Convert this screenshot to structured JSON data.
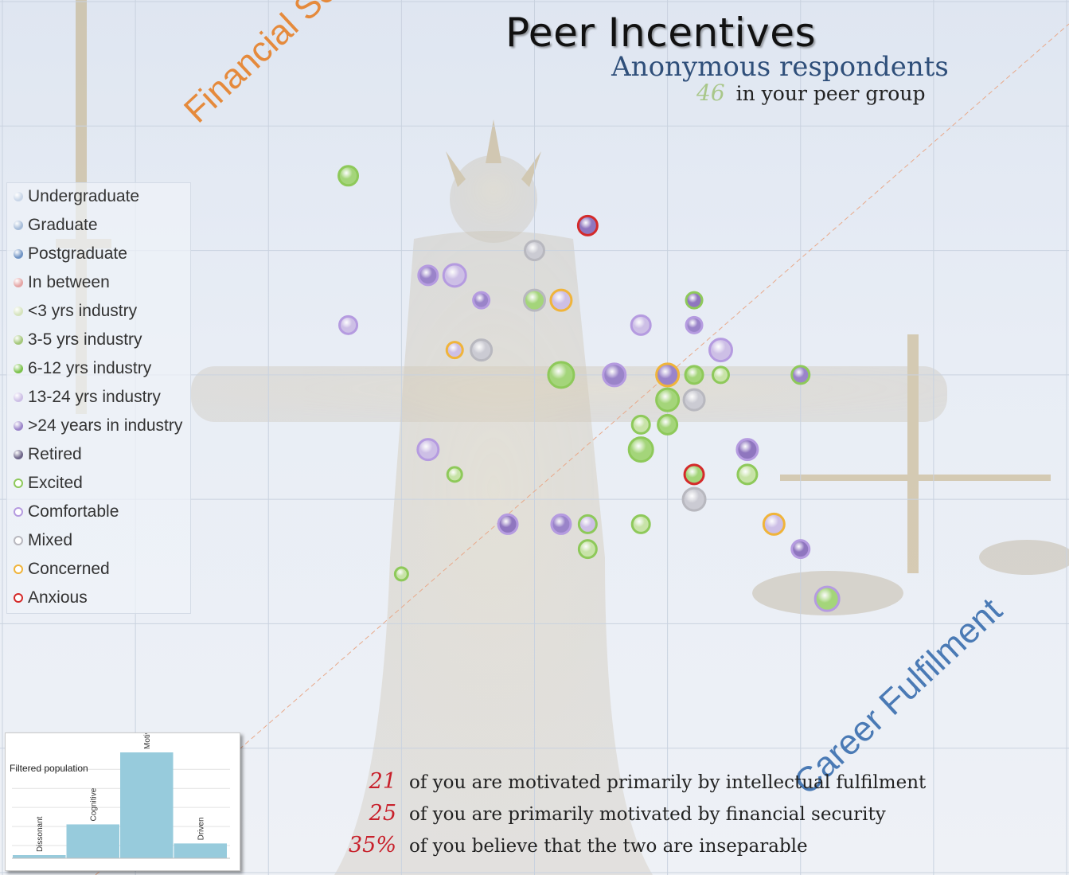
{
  "header": {
    "title": "Peer Incentives",
    "subtitle": "Anonymous respondents",
    "peer_count": "46",
    "peer_text": "in your peer group"
  },
  "axes": {
    "financial_label": "Financial Security",
    "career_label": "Career Fulfilment"
  },
  "colors": {
    "financial": "#e58a3c",
    "career": "#4a7ab5",
    "excited": "#8ec95a",
    "comfortable": "#b59be0",
    "mixed": "#b8b8bf",
    "concerned": "#f0b43a",
    "anxious": "#d42a2a",
    "stat_number": "#c8202b",
    "histogram_bar": "#97cbdc"
  },
  "legend": {
    "items": [
      {
        "label": "Undergraduate",
        "kind": "fill",
        "color": "#c9d6e8"
      },
      {
        "label": "Graduate",
        "kind": "fill",
        "color": "#a6bcd9"
      },
      {
        "label": "Postgraduate",
        "kind": "fill",
        "color": "#6f93c4"
      },
      {
        "label": "In between",
        "kind": "fill",
        "color": "#e4a5a5"
      },
      {
        "label": "<3 yrs industry",
        "kind": "fill",
        "color": "#d5e3bd"
      },
      {
        "label": "3-5 yrs industry",
        "kind": "fill",
        "color": "#a4c77a"
      },
      {
        "label": "6-12 yrs industry",
        "kind": "fill",
        "color": "#7cc24c"
      },
      {
        "label": "13-24 yrs industry",
        "kind": "fill",
        "color": "#cdbfe6"
      },
      {
        "label": ">24 years in industry",
        "kind": "fill",
        "color": "#9a84c9"
      },
      {
        "label": "Retired",
        "kind": "fill",
        "color": "#6c6488"
      },
      {
        "label": "Excited",
        "kind": "ring",
        "color": "#8ec95a"
      },
      {
        "label": "Comfortable",
        "kind": "ring",
        "color": "#b59be0"
      },
      {
        "label": "Mixed",
        "kind": "ring",
        "color": "#b8b8bf"
      },
      {
        "label": "Concerned",
        "kind": "ring",
        "color": "#f0b43a"
      },
      {
        "label": "Anxious",
        "kind": "ring",
        "color": "#d42a2a"
      }
    ]
  },
  "chart_data": [
    {
      "type": "scatter",
      "title": "Peer Incentives",
      "xlabel": "Career Fulfilment",
      "ylabel": "Financial Security",
      "xlim": [
        0,
        8
      ],
      "ylim": [
        0,
        7
      ],
      "grid": true,
      "legend_position": "left",
      "reference_line": "diagonal",
      "points": [
        {
          "x": 2.6,
          "y": 5.6,
          "fill": "#a4d57a",
          "ring": "#8ec95a",
          "r": 12
        },
        {
          "x": 4.4,
          "y": 5.2,
          "fill": "#8f76bf",
          "ring": "#d42a2a",
          "r": 12
        },
        {
          "x": 4.0,
          "y": 5.0,
          "fill": "#cbcbd3",
          "ring": "#b8b8bf",
          "r": 12
        },
        {
          "x": 3.2,
          "y": 4.8,
          "fill": "#9a84c9",
          "ring": "#b59be0",
          "r": 12
        },
        {
          "x": 3.4,
          "y": 4.8,
          "fill": "#cdbfe6",
          "ring": "#b59be0",
          "r": 14
        },
        {
          "x": 3.6,
          "y": 4.6,
          "fill": "#9a84c9",
          "ring": "#b59be0",
          "r": 10
        },
        {
          "x": 4.0,
          "y": 4.6,
          "fill": "#a4d57a",
          "ring": "#b8b8bf",
          "r": 13
        },
        {
          "x": 4.2,
          "y": 4.6,
          "fill": "#cdbfe6",
          "ring": "#f0b43a",
          "r": 13
        },
        {
          "x": 5.2,
          "y": 4.6,
          "fill": "#8f76bf",
          "ring": "#8ec95a",
          "r": 10
        },
        {
          "x": 2.6,
          "y": 4.4,
          "fill": "#cdbfe6",
          "ring": "#b59be0",
          "r": 11
        },
        {
          "x": 4.8,
          "y": 4.4,
          "fill": "#cdbfe6",
          "ring": "#b59be0",
          "r": 12
        },
        {
          "x": 5.2,
          "y": 4.4,
          "fill": "#9a84c9",
          "ring": "#b59be0",
          "r": 10
        },
        {
          "x": 3.4,
          "y": 4.2,
          "fill": "#cdbfe6",
          "ring": "#f0b43a",
          "r": 10
        },
        {
          "x": 3.6,
          "y": 4.2,
          "fill": "#cbcbd3",
          "ring": "#b8b8bf",
          "r": 13
        },
        {
          "x": 5.4,
          "y": 4.2,
          "fill": "#cdbfe6",
          "ring": "#b59be0",
          "r": 14
        },
        {
          "x": 4.2,
          "y": 4.0,
          "fill": "#a4d57a",
          "ring": "#8ec95a",
          "r": 16
        },
        {
          "x": 4.6,
          "y": 4.0,
          "fill": "#9a84c9",
          "ring": "#b59be0",
          "r": 14
        },
        {
          "x": 5.0,
          "y": 4.0,
          "fill": "#9a84c9",
          "ring": "#f0b43a",
          "r": 14
        },
        {
          "x": 5.2,
          "y": 4.0,
          "fill": "#a4d57a",
          "ring": "#8ec95a",
          "r": 11
        },
        {
          "x": 5.4,
          "y": 4.0,
          "fill": "#c8e3a8",
          "ring": "#8ec95a",
          "r": 10
        },
        {
          "x": 6.0,
          "y": 4.0,
          "fill": "#9a84c9",
          "ring": "#8ec95a",
          "r": 11
        },
        {
          "x": 5.0,
          "y": 3.8,
          "fill": "#a4d57a",
          "ring": "#8ec95a",
          "r": 14
        },
        {
          "x": 5.2,
          "y": 3.8,
          "fill": "#cbcbd3",
          "ring": "#b8b8bf",
          "r": 13
        },
        {
          "x": 4.8,
          "y": 3.6,
          "fill": "#c8e3a8",
          "ring": "#8ec95a",
          "r": 11
        },
        {
          "x": 5.0,
          "y": 3.6,
          "fill": "#a4d57a",
          "ring": "#8ec95a",
          "r": 12
        },
        {
          "x": 3.2,
          "y": 3.4,
          "fill": "#cdbfe6",
          "ring": "#b59be0",
          "r": 13
        },
        {
          "x": 4.8,
          "y": 3.4,
          "fill": "#a4d57a",
          "ring": "#8ec95a",
          "r": 15
        },
        {
          "x": 5.6,
          "y": 3.4,
          "fill": "#8f76bf",
          "ring": "#b59be0",
          "r": 13
        },
        {
          "x": 3.4,
          "y": 3.2,
          "fill": "#c8e3a8",
          "ring": "#8ec95a",
          "r": 9
        },
        {
          "x": 5.2,
          "y": 3.2,
          "fill": "#a4d57a",
          "ring": "#d42a2a",
          "r": 12
        },
        {
          "x": 5.6,
          "y": 3.2,
          "fill": "#c8e3a8",
          "ring": "#8ec95a",
          "r": 12
        },
        {
          "x": 5.2,
          "y": 3.0,
          "fill": "#cbcbd3",
          "ring": "#b8b8bf",
          "r": 14
        },
        {
          "x": 3.8,
          "y": 2.8,
          "fill": "#8f76bf",
          "ring": "#b59be0",
          "r": 12
        },
        {
          "x": 4.2,
          "y": 2.8,
          "fill": "#9a84c9",
          "ring": "#b59be0",
          "r": 12
        },
        {
          "x": 4.4,
          "y": 2.8,
          "fill": "#cdbfe6",
          "ring": "#8ec95a",
          "r": 11
        },
        {
          "x": 4.8,
          "y": 2.8,
          "fill": "#c8e3a8",
          "ring": "#8ec95a",
          "r": 11
        },
        {
          "x": 5.8,
          "y": 2.8,
          "fill": "#cdbfe6",
          "ring": "#f0b43a",
          "r": 13
        },
        {
          "x": 4.4,
          "y": 2.6,
          "fill": "#c8e3a8",
          "ring": "#8ec95a",
          "r": 11
        },
        {
          "x": 6.0,
          "y": 2.6,
          "fill": "#8f76bf",
          "ring": "#b59be0",
          "r": 11
        },
        {
          "x": 3.0,
          "y": 2.4,
          "fill": "#c8e3a8",
          "ring": "#8ec95a",
          "r": 8
        },
        {
          "x": 6.2,
          "y": 2.2,
          "fill": "#a4d57a",
          "ring": "#b59be0",
          "r": 15
        }
      ]
    },
    {
      "type": "bar",
      "title": "Filtered population",
      "categories": [
        "Dissonant",
        "Cognitive",
        "Motivational",
        "Driven"
      ],
      "values": [
        3,
        32,
        100,
        14
      ],
      "ylim": [
        0,
        100
      ]
    }
  ],
  "stats": [
    {
      "num": "21",
      "text": "of you are motivated primarily by intellectual fulfilment"
    },
    {
      "num": "25",
      "text": "of you are primarily motivated by financial security"
    },
    {
      "num": "35%",
      "text": "of you believe that the two are inseparable"
    }
  ]
}
